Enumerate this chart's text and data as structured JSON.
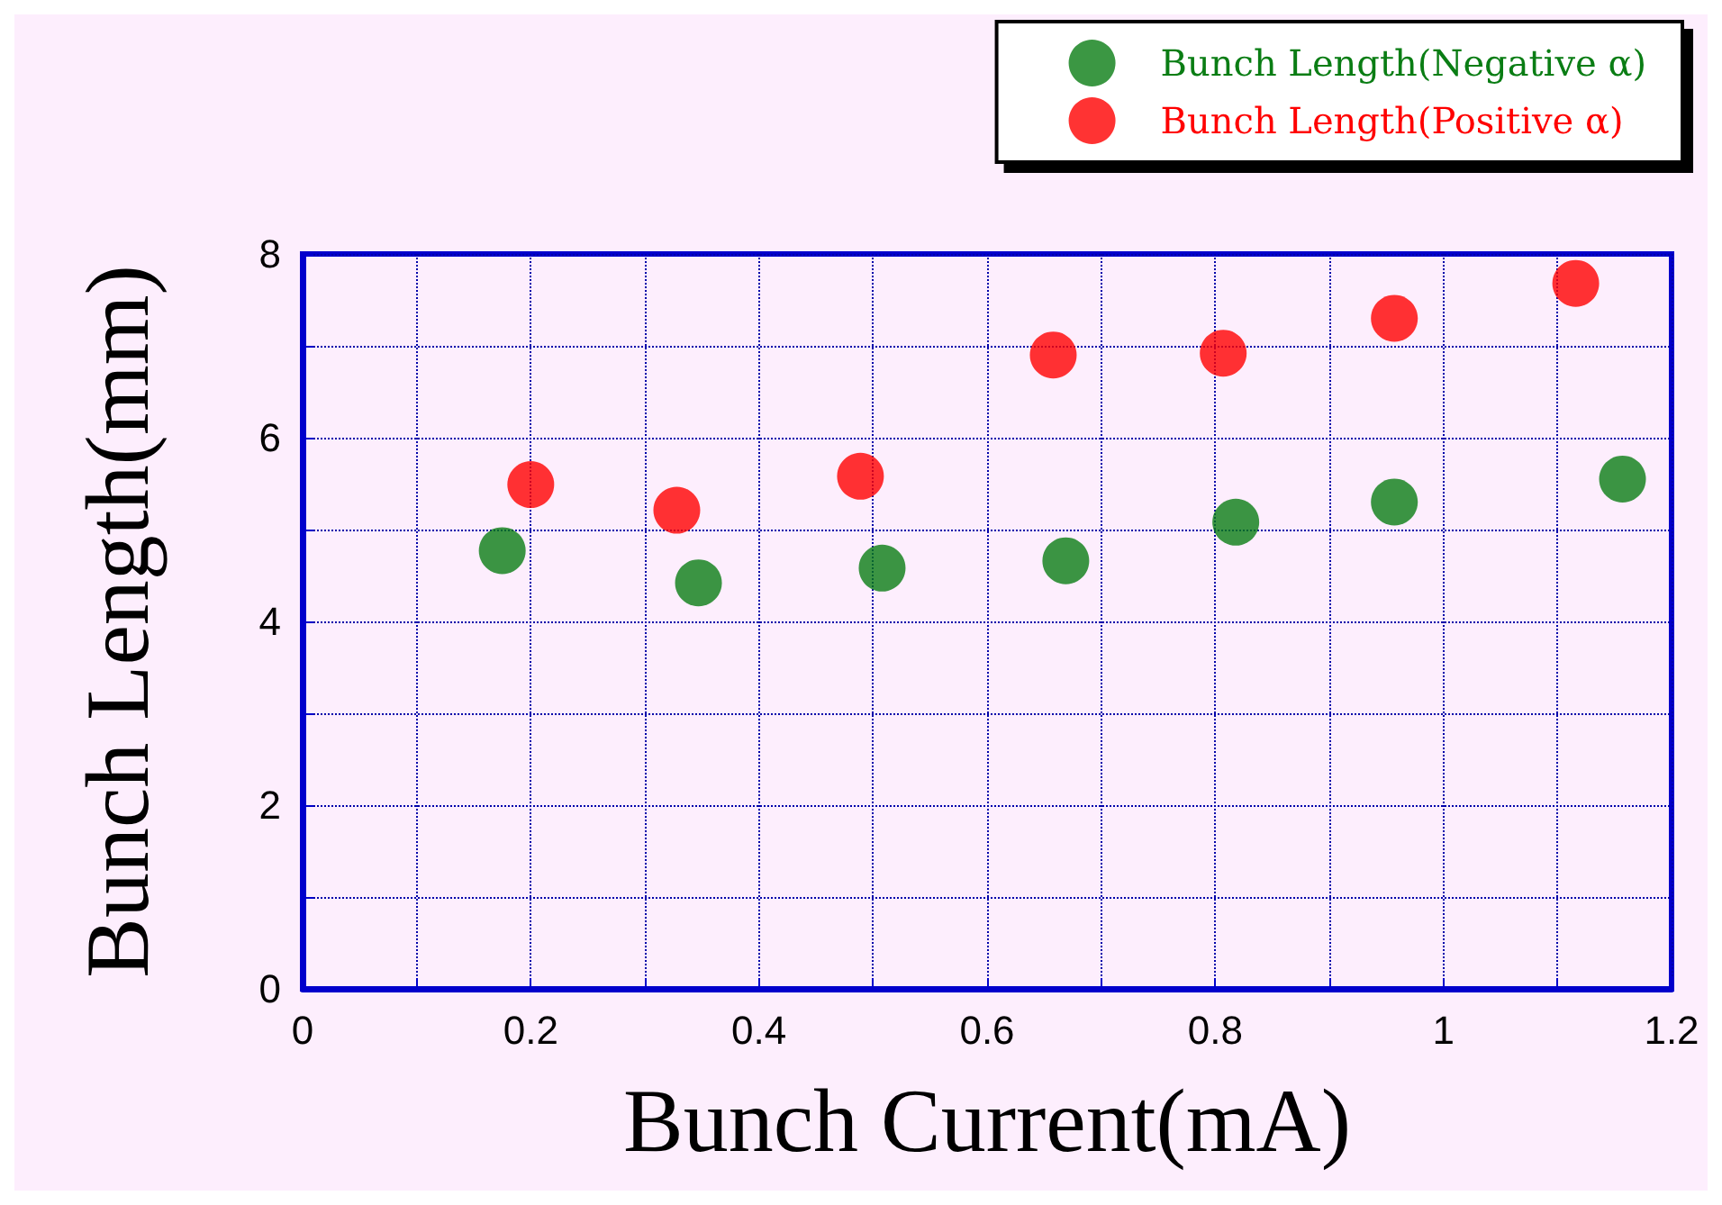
{
  "chart_data": {
    "type": "scatter",
    "xlabel": "Bunch Current(mA)",
    "ylabel": "Bunch Length(mm)",
    "xlim": [
      0,
      1.2
    ],
    "ylim": [
      0,
      8
    ],
    "xticks": [
      0,
      {
        "value": 0.1,
        "label": null
      },
      0.2,
      {
        "value": 0.3,
        "label": null
      },
      0.4,
      {
        "value": 0.5,
        "label": null
      },
      0.6,
      {
        "value": 0.7,
        "label": null
      },
      0.8,
      {
        "value": 0.9,
        "label": null
      },
      1,
      {
        "value": 1.1,
        "label": null
      },
      1.2
    ],
    "yticks": [
      0,
      {
        "value": 1,
        "label": null
      },
      2,
      {
        "value": 3,
        "label": null
      },
      4,
      {
        "value": 5,
        "label": null
      },
      6,
      {
        "value": 7,
        "label": null
      },
      8
    ],
    "series": [
      {
        "name": "Bunch Length(Negative α)",
        "color": "#0a7d14",
        "x": [
          0.175,
          0.347,
          0.508,
          0.669,
          0.818,
          0.957,
          1.157
        ],
        "values": [
          4.77,
          4.42,
          4.58,
          4.66,
          5.08,
          5.3,
          5.55
        ]
      },
      {
        "name": "Bunch Length(Positive α)",
        "color": "#ff0000",
        "x": [
          0.2,
          0.328,
          0.489,
          0.658,
          0.807,
          0.957,
          1.116
        ],
        "values": [
          5.49,
          5.21,
          5.58,
          6.9,
          6.92,
          7.3,
          7.68
        ]
      }
    ],
    "grid": true,
    "legend": "top right",
    "marker": "circle"
  }
}
